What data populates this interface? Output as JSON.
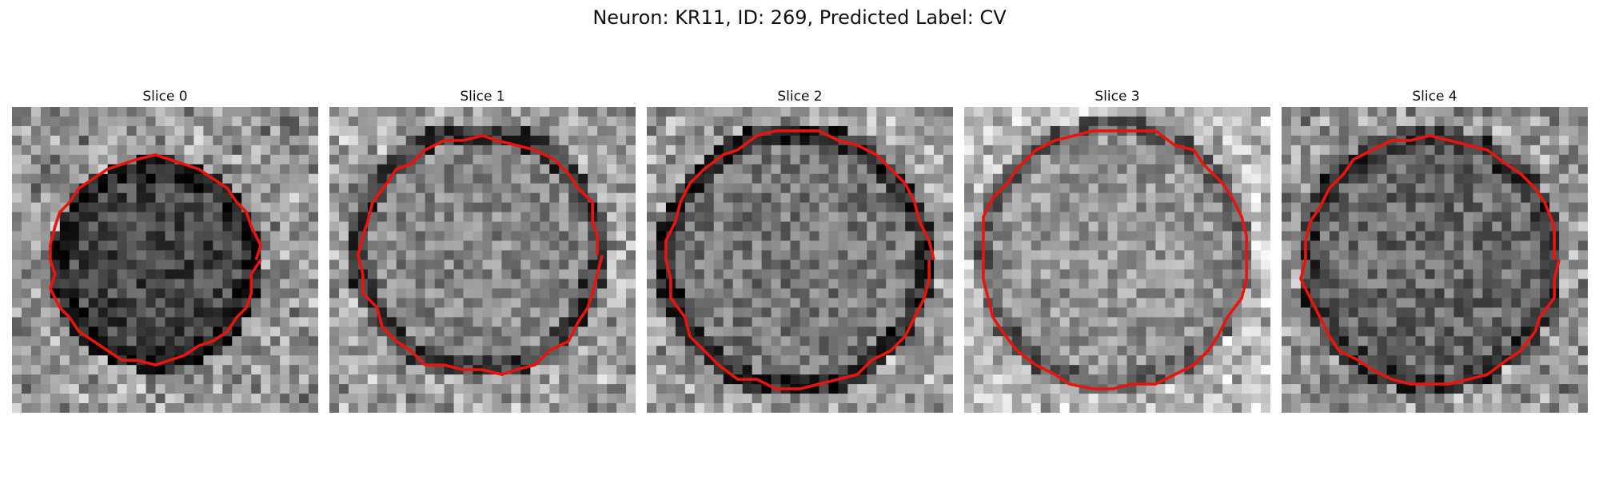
{
  "figure": {
    "title": "Neuron: KR11, ID: 269, Predicted Label: CV"
  },
  "slices": [
    {
      "title": "Slice 0"
    },
    {
      "title": "Slice 1"
    },
    {
      "title": "Slice 2"
    },
    {
      "title": "Slice 3"
    },
    {
      "title": "Slice 4"
    }
  ],
  "colors": {
    "contour": "#e8150f",
    "background": "#ffffff"
  }
}
